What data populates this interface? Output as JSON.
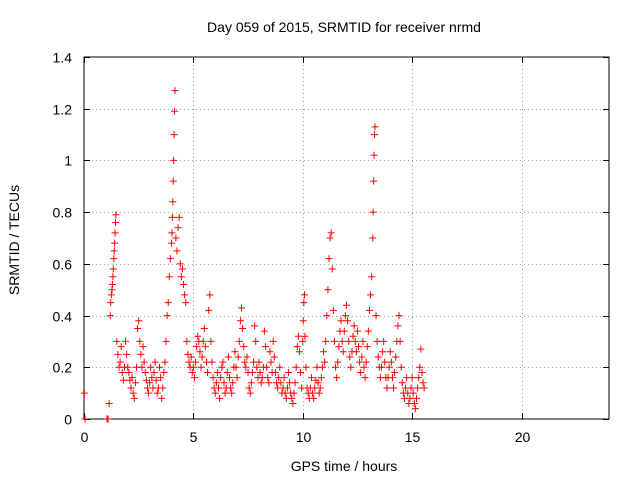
{
  "chart_data": {
    "type": "scatter",
    "title": "Day 059 of 2015, SRMTID for receiver nrmd",
    "xlabel": "GPS time / hours",
    "ylabel": "SRMTID / TECUs",
    "xlim": [
      0,
      24
    ],
    "ylim": [
      0,
      1.4
    ],
    "xticks": [
      0,
      5,
      10,
      15,
      20
    ],
    "yticks": [
      0,
      0.2,
      0.4,
      0.6,
      0.8,
      1,
      1.2,
      1.4
    ],
    "xtick_labels": [
      "0",
      "5",
      "10",
      "15",
      "20"
    ],
    "ytick_labels": [
      "0",
      "0.2",
      "0.4",
      "0.6",
      "0.8",
      "1",
      "1.2",
      "1.4"
    ],
    "grid": true,
    "marker": "+",
    "color": "#ff0000",
    "series": [
      {
        "name": "SRMTID",
        "points": [
          [
            0.02,
            0.1
          ],
          [
            0.05,
            0.0
          ],
          [
            1.05,
            0.0
          ],
          [
            1.1,
            0.0
          ],
          [
            1.15,
            0.06
          ],
          [
            1.2,
            0.4
          ],
          [
            1.22,
            0.45
          ],
          [
            1.25,
            0.48
          ],
          [
            1.28,
            0.5
          ],
          [
            1.3,
            0.52
          ],
          [
            1.32,
            0.55
          ],
          [
            1.34,
            0.58
          ],
          [
            1.36,
            0.62
          ],
          [
            1.38,
            0.65
          ],
          [
            1.4,
            0.68
          ],
          [
            1.42,
            0.72
          ],
          [
            1.44,
            0.76
          ],
          [
            1.46,
            0.79
          ],
          [
            1.5,
            0.3
          ],
          [
            1.55,
            0.25
          ],
          [
            1.6,
            0.2
          ],
          [
            1.65,
            0.22
          ],
          [
            1.7,
            0.28
          ],
          [
            1.75,
            0.18
          ],
          [
            1.8,
            0.15
          ],
          [
            1.85,
            0.2
          ],
          [
            1.9,
            0.3
          ],
          [
            1.95,
            0.25
          ],
          [
            2.0,
            0.2
          ],
          [
            2.05,
            0.18
          ],
          [
            2.1,
            0.15
          ],
          [
            2.15,
            0.12
          ],
          [
            2.2,
            0.16
          ],
          [
            2.25,
            0.1
          ],
          [
            2.3,
            0.08
          ],
          [
            2.35,
            0.14
          ],
          [
            2.4,
            0.2
          ],
          [
            2.45,
            0.35
          ],
          [
            2.5,
            0.38
          ],
          [
            2.55,
            0.3
          ],
          [
            2.6,
            0.25
          ],
          [
            2.65,
            0.2
          ],
          [
            2.7,
            0.28
          ],
          [
            2.75,
            0.22
          ],
          [
            2.8,
            0.18
          ],
          [
            2.85,
            0.15
          ],
          [
            2.9,
            0.12
          ],
          [
            2.95,
            0.1
          ],
          [
            3.0,
            0.14
          ],
          [
            3.05,
            0.2
          ],
          [
            3.1,
            0.16
          ],
          [
            3.15,
            0.12
          ],
          [
            3.2,
            0.18
          ],
          [
            3.25,
            0.22
          ],
          [
            3.3,
            0.15
          ],
          [
            3.35,
            0.1
          ],
          [
            3.4,
            0.12
          ],
          [
            3.45,
            0.2
          ],
          [
            3.5,
            0.16
          ],
          [
            3.55,
            0.08
          ],
          [
            3.6,
            0.12
          ],
          [
            3.65,
            0.18
          ],
          [
            3.7,
            0.22
          ],
          [
            3.75,
            0.3
          ],
          [
            3.8,
            0.4
          ],
          [
            3.85,
            0.45
          ],
          [
            3.9,
            0.55
          ],
          [
            3.95,
            0.62
          ],
          [
            4.0,
            0.68
          ],
          [
            4.02,
            0.72
          ],
          [
            4.04,
            0.78
          ],
          [
            4.06,
            0.84
          ],
          [
            4.08,
            0.92
          ],
          [
            4.1,
            1.0
          ],
          [
            4.12,
            1.1
          ],
          [
            4.14,
            1.19
          ],
          [
            4.16,
            1.27
          ],
          [
            4.2,
            0.7
          ],
          [
            4.25,
            0.65
          ],
          [
            4.3,
            0.74
          ],
          [
            4.35,
            0.78
          ],
          [
            4.4,
            0.6
          ],
          [
            4.45,
            0.55
          ],
          [
            4.5,
            0.58
          ],
          [
            4.55,
            0.52
          ],
          [
            4.6,
            0.48
          ],
          [
            4.65,
            0.45
          ],
          [
            4.7,
            0.3
          ],
          [
            4.75,
            0.25
          ],
          [
            4.8,
            0.22
          ],
          [
            4.85,
            0.2
          ],
          [
            4.9,
            0.24
          ],
          [
            4.95,
            0.18
          ],
          [
            5.0,
            0.2
          ],
          [
            5.05,
            0.16
          ],
          [
            5.1,
            0.22
          ],
          [
            5.15,
            0.28
          ],
          [
            5.2,
            0.32
          ],
          [
            5.25,
            0.3
          ],
          [
            5.3,
            0.26
          ],
          [
            5.35,
            0.2
          ],
          [
            5.4,
            0.24
          ],
          [
            5.45,
            0.3
          ],
          [
            5.5,
            0.35
          ],
          [
            5.55,
            0.28
          ],
          [
            5.6,
            0.22
          ],
          [
            5.65,
            0.18
          ],
          [
            5.7,
            0.42
          ],
          [
            5.75,
            0.48
          ],
          [
            5.8,
            0.3
          ],
          [
            5.85,
            0.22
          ],
          [
            5.9,
            0.16
          ],
          [
            5.95,
            0.12
          ],
          [
            6.0,
            0.1
          ],
          [
            6.05,
            0.14
          ],
          [
            6.1,
            0.18
          ],
          [
            6.15,
            0.12
          ],
          [
            6.2,
            0.08
          ],
          [
            6.25,
            0.16
          ],
          [
            6.3,
            0.2
          ],
          [
            6.35,
            0.22
          ],
          [
            6.4,
            0.14
          ],
          [
            6.45,
            0.1
          ],
          [
            6.5,
            0.12
          ],
          [
            6.55,
            0.18
          ],
          [
            6.6,
            0.24
          ],
          [
            6.65,
            0.16
          ],
          [
            6.7,
            0.12
          ],
          [
            6.75,
            0.1
          ],
          [
            6.8,
            0.14
          ],
          [
            6.85,
            0.2
          ],
          [
            6.9,
            0.26
          ],
          [
            6.95,
            0.2
          ],
          [
            7.0,
            0.16
          ],
          [
            7.05,
            0.24
          ],
          [
            7.1,
            0.3
          ],
          [
            7.15,
            0.38
          ],
          [
            7.2,
            0.43
          ],
          [
            7.25,
            0.35
          ],
          [
            7.3,
            0.28
          ],
          [
            7.35,
            0.22
          ],
          [
            7.4,
            0.2
          ],
          [
            7.45,
            0.24
          ],
          [
            7.5,
            0.18
          ],
          [
            7.55,
            0.12
          ],
          [
            7.6,
            0.1
          ],
          [
            7.65,
            0.14
          ],
          [
            7.7,
            0.18
          ],
          [
            7.75,
            0.22
          ],
          [
            7.8,
            0.36
          ],
          [
            7.85,
            0.3
          ],
          [
            7.9,
            0.2
          ],
          [
            7.95,
            0.16
          ],
          [
            8.0,
            0.22
          ],
          [
            8.05,
            0.18
          ],
          [
            8.1,
            0.14
          ],
          [
            8.15,
            0.16
          ],
          [
            8.2,
            0.2
          ],
          [
            8.25,
            0.34
          ],
          [
            8.3,
            0.28
          ],
          [
            8.35,
            0.2
          ],
          [
            8.4,
            0.16
          ],
          [
            8.45,
            0.14
          ],
          [
            8.5,
            0.26
          ],
          [
            8.55,
            0.22
          ],
          [
            8.6,
            0.18
          ],
          [
            8.65,
            0.3
          ],
          [
            8.7,
            0.24
          ],
          [
            8.75,
            0.18
          ],
          [
            8.8,
            0.14
          ],
          [
            8.85,
            0.12
          ],
          [
            8.9,
            0.16
          ],
          [
            8.95,
            0.2
          ],
          [
            9.0,
            0.14
          ],
          [
            9.05,
            0.1
          ],
          [
            9.1,
            0.12
          ],
          [
            9.15,
            0.16
          ],
          [
            9.2,
            0.1
          ],
          [
            9.25,
            0.08
          ],
          [
            9.3,
            0.12
          ],
          [
            9.35,
            0.18
          ],
          [
            9.4,
            0.14
          ],
          [
            9.45,
            0.1
          ],
          [
            9.5,
            0.08
          ],
          [
            9.55,
            0.06
          ],
          [
            9.6,
            0.1
          ],
          [
            9.65,
            0.14
          ],
          [
            9.7,
            0.2
          ],
          [
            9.75,
            0.28
          ],
          [
            9.8,
            0.32
          ],
          [
            9.85,
            0.26
          ],
          [
            9.9,
            0.18
          ],
          [
            9.95,
            0.12
          ],
          [
            10.0,
            0.3
          ],
          [
            10.02,
            0.38
          ],
          [
            10.05,
            0.45
          ],
          [
            10.08,
            0.48
          ],
          [
            10.1,
            0.32
          ],
          [
            10.15,
            0.2
          ],
          [
            10.2,
            0.12
          ],
          [
            10.25,
            0.1
          ],
          [
            10.3,
            0.08
          ],
          [
            10.35,
            0.12
          ],
          [
            10.4,
            0.16
          ],
          [
            10.45,
            0.1
          ],
          [
            10.5,
            0.08
          ],
          [
            10.55,
            0.12
          ],
          [
            10.6,
            0.15
          ],
          [
            10.65,
            0.2
          ],
          [
            10.7,
            0.14
          ],
          [
            10.75,
            0.1
          ],
          [
            10.8,
            0.12
          ],
          [
            10.85,
            0.16
          ],
          [
            10.9,
            0.2
          ],
          [
            10.95,
            0.26
          ],
          [
            11.0,
            0.22
          ],
          [
            11.05,
            0.3
          ],
          [
            11.1,
            0.4
          ],
          [
            11.15,
            0.5
          ],
          [
            11.2,
            0.62
          ],
          [
            11.25,
            0.7
          ],
          [
            11.3,
            0.72
          ],
          [
            11.35,
            0.58
          ],
          [
            11.4,
            0.42
          ],
          [
            11.45,
            0.3
          ],
          [
            11.5,
            0.2
          ],
          [
            11.55,
            0.16
          ],
          [
            11.6,
            0.22
          ],
          [
            11.65,
            0.28
          ],
          [
            11.7,
            0.34
          ],
          [
            11.75,
            0.38
          ],
          [
            11.8,
            0.3
          ],
          [
            11.85,
            0.26
          ],
          [
            11.9,
            0.34
          ],
          [
            11.95,
            0.4
          ],
          [
            12.0,
            0.44
          ],
          [
            12.05,
            0.38
          ],
          [
            12.1,
            0.3
          ],
          [
            12.15,
            0.24
          ],
          [
            12.2,
            0.2
          ],
          [
            12.25,
            0.26
          ],
          [
            12.3,
            0.32
          ],
          [
            12.35,
            0.36
          ],
          [
            12.4,
            0.3
          ],
          [
            12.45,
            0.26
          ],
          [
            12.5,
            0.34
          ],
          [
            12.55,
            0.28
          ],
          [
            12.6,
            0.22
          ],
          [
            12.65,
            0.18
          ],
          [
            12.7,
            0.24
          ],
          [
            12.75,
            0.3
          ],
          [
            12.8,
            0.2
          ],
          [
            12.85,
            0.16
          ],
          [
            12.9,
            0.22
          ],
          [
            12.95,
            0.28
          ],
          [
            13.0,
            0.34
          ],
          [
            13.05,
            0.42
          ],
          [
            13.1,
            0.48
          ],
          [
            13.15,
            0.55
          ],
          [
            13.2,
            0.7
          ],
          [
            13.22,
            0.8
          ],
          [
            13.24,
            0.92
          ],
          [
            13.26,
            1.02
          ],
          [
            13.28,
            1.1
          ],
          [
            13.3,
            1.13
          ],
          [
            13.35,
            0.4
          ],
          [
            13.4,
            0.3
          ],
          [
            13.45,
            0.24
          ],
          [
            13.5,
            0.2
          ],
          [
            13.55,
            0.16
          ],
          [
            13.6,
            0.2
          ],
          [
            13.65,
            0.26
          ],
          [
            13.7,
            0.3
          ],
          [
            13.75,
            0.22
          ],
          [
            13.8,
            0.16
          ],
          [
            13.85,
            0.12
          ],
          [
            13.9,
            0.16
          ],
          [
            13.95,
            0.2
          ],
          [
            14.0,
            0.26
          ],
          [
            14.05,
            0.22
          ],
          [
            14.1,
            0.16
          ],
          [
            14.15,
            0.12
          ],
          [
            14.2,
            0.18
          ],
          [
            14.25,
            0.24
          ],
          [
            14.3,
            0.3
          ],
          [
            14.35,
            0.36
          ],
          [
            14.4,
            0.4
          ],
          [
            14.45,
            0.3
          ],
          [
            14.5,
            0.2
          ],
          [
            14.55,
            0.14
          ],
          [
            14.6,
            0.1
          ],
          [
            14.65,
            0.08
          ],
          [
            14.7,
            0.12
          ],
          [
            14.75,
            0.16
          ],
          [
            14.8,
            0.1
          ],
          [
            14.85,
            0.06
          ],
          [
            14.9,
            0.08
          ],
          [
            14.95,
            0.12
          ],
          [
            15.0,
            0.16
          ],
          [
            15.05,
            0.1
          ],
          [
            15.1,
            0.06
          ],
          [
            15.15,
            0.04
          ],
          [
            15.2,
            0.08
          ],
          [
            15.25,
            0.12
          ],
          [
            15.3,
            0.16
          ],
          [
            15.35,
            0.2
          ],
          [
            15.4,
            0.27
          ],
          [
            15.45,
            0.18
          ],
          [
            15.5,
            0.14
          ],
          [
            15.55,
            0.12
          ]
        ]
      }
    ]
  }
}
